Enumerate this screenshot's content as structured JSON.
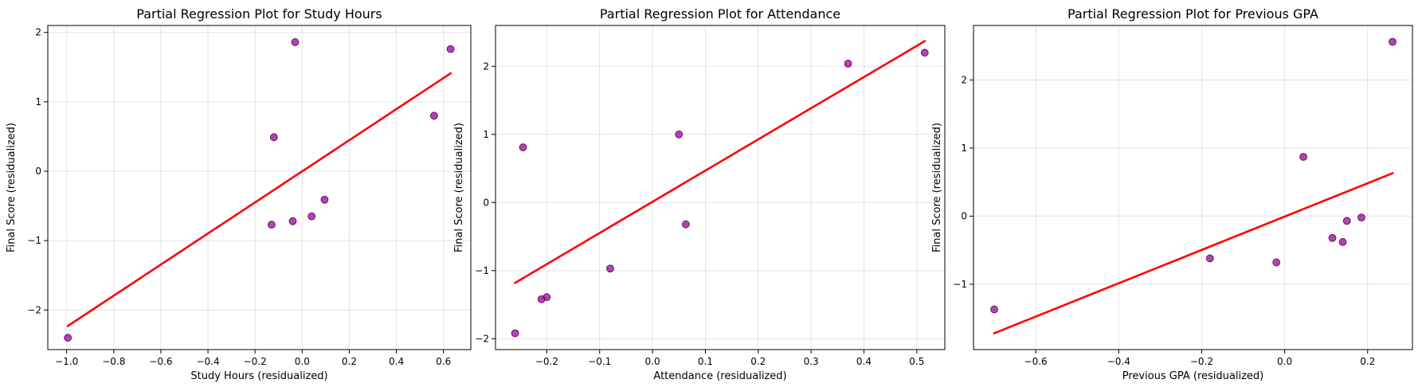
{
  "chart_data": [
    {
      "type": "scatter",
      "title": "Partial Regression Plot for Study Hours",
      "xlabel": "Study Hours (residualized)",
      "ylabel": "Final Score (residualized)",
      "xlim": [
        -1.08,
        0.716
      ],
      "ylim": [
        -2.57,
        2.1
      ],
      "xticks": [
        -1.0,
        -0.8,
        -0.6,
        -0.4,
        -0.2,
        0.0,
        0.2,
        0.4,
        0.6
      ],
      "xtick_labels": [
        "−1.0",
        "−0.8",
        "−0.6",
        "−0.4",
        "−0.2",
        "0.0",
        "0.2",
        "0.4",
        "0.6"
      ],
      "yticks": [
        -2,
        -1,
        0,
        1,
        2
      ],
      "ytick_labels": [
        "−2",
        "−1",
        "0",
        "1",
        "2"
      ],
      "grid": true,
      "points": {
        "x": [
          -0.995,
          -0.13,
          -0.12,
          -0.04,
          -0.03,
          0.04,
          0.095,
          0.56,
          0.63
        ],
        "y": [
          -2.4,
          -0.77,
          0.49,
          -0.72,
          1.86,
          -0.65,
          -0.41,
          0.8,
          1.76
        ]
      },
      "fit_line": {
        "x": [
          -0.995,
          0.63
        ],
        "y": [
          -2.23,
          1.41
        ]
      }
    },
    {
      "type": "scatter",
      "title": "Partial Regression Plot for Attendance",
      "xlabel": "Attendance (residualized)",
      "ylabel": "Final Score (residualized)",
      "xlim": [
        -0.297,
        0.553
      ],
      "ylim": [
        -2.16,
        2.6
      ],
      "xticks": [
        -0.2,
        -0.1,
        0.0,
        0.1,
        0.2,
        0.3,
        0.4,
        0.5
      ],
      "xtick_labels": [
        "−0.2",
        "−0.1",
        "0.0",
        "0.1",
        "0.2",
        "0.3",
        "0.4",
        "0.5"
      ],
      "yticks": [
        -2,
        -1,
        0,
        1,
        2
      ],
      "ytick_labels": [
        "−2",
        "−1",
        "0",
        "1",
        "2"
      ],
      "grid": true,
      "points": {
        "x": [
          -0.26,
          -0.245,
          -0.21,
          -0.2,
          -0.08,
          0.05,
          0.063,
          0.37,
          0.515
        ],
        "y": [
          -1.92,
          0.81,
          -1.42,
          -1.39,
          -0.97,
          1.0,
          -0.32,
          2.04,
          2.2
        ]
      },
      "fit_line": {
        "x": [
          -0.26,
          0.515
        ],
        "y": [
          -1.18,
          2.37
        ]
      }
    },
    {
      "type": "scatter",
      "title": "Partial Regression Plot for Previous GPA",
      "xlabel": "Previous GPA (residualized)",
      "ylabel": "Final Score (residualized)",
      "xlim": [
        -0.75,
        0.308
      ],
      "ylim": [
        -1.96,
        2.8
      ],
      "xticks": [
        -0.6,
        -0.4,
        -0.2,
        0.0,
        0.2
      ],
      "xtick_labels": [
        "−0.6",
        "−0.4",
        "−0.2",
        "0.0",
        "0.2"
      ],
      "yticks": [
        -1,
        0,
        1,
        2
      ],
      "ytick_labels": [
        "−1",
        "0",
        "1",
        "2"
      ],
      "grid": true,
      "points": {
        "x": [
          -0.7,
          -0.18,
          -0.02,
          0.045,
          0.115,
          0.14,
          0.15,
          0.185,
          0.26
        ],
        "y": [
          -1.37,
          -0.62,
          -0.68,
          0.87,
          -0.32,
          -0.38,
          -0.07,
          -0.02,
          2.56
        ]
      },
      "fit_line": {
        "x": [
          -0.7,
          0.26
        ],
        "y": [
          -1.72,
          0.63
        ]
      }
    }
  ],
  "colors": {
    "points": "#800080",
    "fit_line": "#ff0000"
  }
}
